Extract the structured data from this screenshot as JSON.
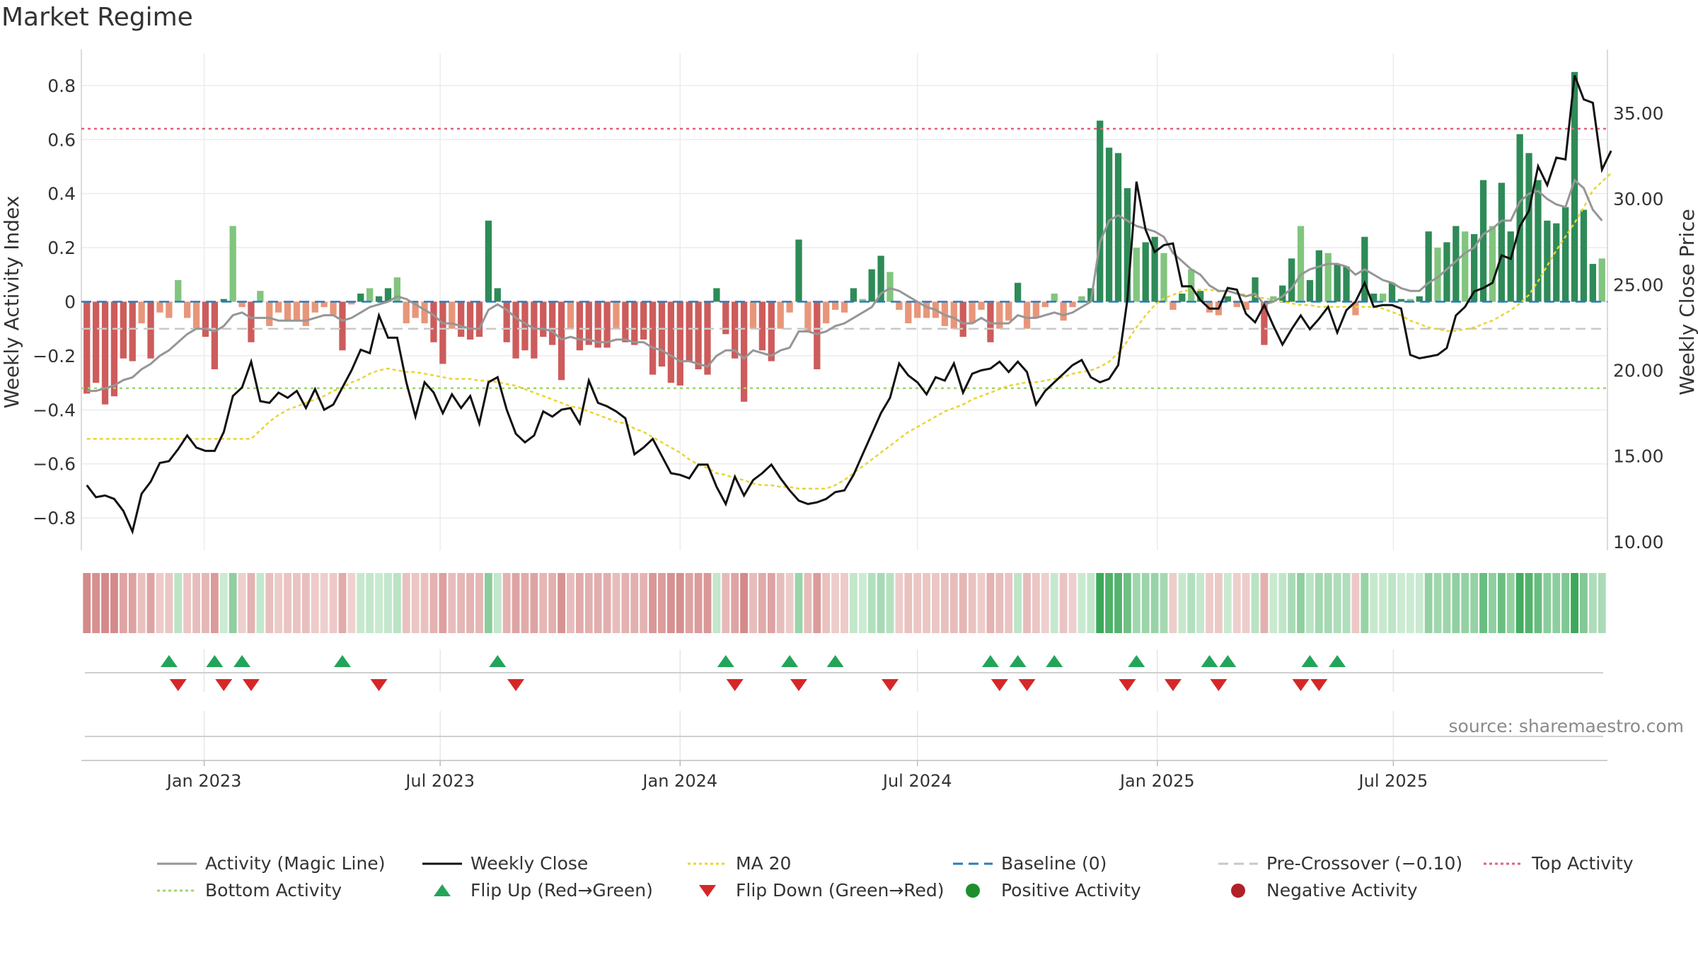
{
  "title": "Market Regime",
  "source": "source: sharemaestro.com",
  "chart_data": {
    "type": "bar",
    "frequency": "weekly",
    "start_date": "2022-10-03",
    "left_axis": {
      "label": "Weekly Activity Index",
      "ylim": [
        -0.92,
        0.92
      ],
      "ticks": [
        -0.8,
        -0.6,
        -0.4,
        -0.2,
        0,
        0.2,
        0.4,
        0.6,
        0.8
      ]
    },
    "right_axis": {
      "label": "Weekly Close Price",
      "ylim": [
        9.5,
        38.5
      ],
      "ticks": [
        10,
        15,
        20,
        25,
        30,
        35
      ]
    },
    "x_ticks": [
      "Jan 2023",
      "Jul 2023",
      "Jan 2024",
      "Jul 2024",
      "Jan 2025",
      "Jul 2025"
    ],
    "x_tick_dates": [
      "2023-01-01",
      "2023-07-01",
      "2024-01-01",
      "2024-07-01",
      "2025-01-01",
      "2025-07-01"
    ],
    "grid": true,
    "legend_position": "bottom",
    "reference_lines": {
      "baseline": 0,
      "pre_crossover": -0.1,
      "top_activity": 0.64,
      "bottom_activity": -0.32
    },
    "activity": [
      -0.34,
      -0.3,
      -0.38,
      -0.35,
      -0.21,
      -0.22,
      -0.08,
      -0.21,
      -0.04,
      -0.06,
      0.08,
      -0.06,
      -0.1,
      -0.13,
      -0.25,
      0.01,
      0.28,
      -0.02,
      -0.15,
      0.04,
      -0.09,
      -0.04,
      -0.07,
      -0.07,
      -0.09,
      -0.04,
      -0.02,
      -0.05,
      -0.18,
      -0.01,
      0.03,
      0.05,
      0.02,
      0.05,
      0.09,
      -0.08,
      -0.06,
      -0.08,
      -0.15,
      -0.23,
      -0.1,
      -0.13,
      -0.14,
      -0.13,
      0.3,
      0.05,
      -0.15,
      -0.21,
      -0.18,
      -0.21,
      -0.13,
      -0.16,
      -0.29,
      -0.1,
      -0.18,
      -0.16,
      -0.17,
      -0.17,
      -0.1,
      -0.15,
      -0.16,
      -0.14,
      -0.27,
      -0.24,
      -0.3,
      -0.31,
      -0.22,
      -0.25,
      -0.27,
      0.05,
      -0.12,
      -0.21,
      -0.37,
      -0.1,
      -0.18,
      -0.22,
      -0.1,
      -0.04,
      0.23,
      -0.11,
      -0.25,
      -0.08,
      -0.03,
      -0.04,
      0.05,
      0.01,
      0.12,
      0.17,
      0.11,
      -0.03,
      -0.08,
      -0.06,
      -0.06,
      -0.06,
      -0.09,
      -0.1,
      -0.13,
      -0.08,
      -0.03,
      -0.15,
      -0.1,
      -0.07,
      0.07,
      -0.1,
      -0.06,
      -0.02,
      0.03,
      -0.07,
      -0.02,
      0.02,
      0.05,
      0.67,
      0.57,
      0.55,
      0.42,
      0.2,
      0.22,
      0.24,
      0.18,
      -0.03,
      0.03,
      0.12,
      0.04,
      -0.04,
      -0.05,
      0.02,
      -0.02,
      -0.03,
      0.09,
      -0.16,
      0.02,
      0.06,
      0.16,
      0.28,
      0.08,
      0.19,
      0.18,
      0.14,
      0.13,
      -0.05,
      0.24,
      0.03,
      0.03,
      0.07,
      0.01,
      0.01,
      0.02,
      0.26,
      0.2,
      0.22,
      0.28,
      0.26,
      0.25,
      0.45,
      0.28,
      0.44,
      0.26,
      0.62,
      0.55,
      0.45,
      0.3,
      0.29,
      0.35,
      0.85,
      0.34,
      0.14,
      0.16
    ],
    "magic_line": [
      -0.33,
      -0.33,
      -0.32,
      -0.31,
      -0.29,
      -0.28,
      -0.25,
      -0.23,
      -0.2,
      -0.18,
      -0.15,
      -0.12,
      -0.1,
      -0.1,
      -0.11,
      -0.09,
      -0.05,
      -0.04,
      -0.06,
      -0.06,
      -0.06,
      -0.07,
      -0.07,
      -0.07,
      -0.07,
      -0.06,
      -0.05,
      -0.05,
      -0.07,
      -0.06,
      -0.04,
      -0.02,
      -0.01,
      0.0,
      0.02,
      0.01,
      -0.01,
      -0.03,
      -0.05,
      -0.08,
      -0.08,
      -0.09,
      -0.1,
      -0.1,
      -0.03,
      -0.01,
      -0.03,
      -0.06,
      -0.08,
      -0.1,
      -0.1,
      -0.11,
      -0.14,
      -0.13,
      -0.14,
      -0.14,
      -0.15,
      -0.15,
      -0.14,
      -0.14,
      -0.15,
      -0.15,
      -0.17,
      -0.18,
      -0.2,
      -0.22,
      -0.22,
      -0.23,
      -0.24,
      -0.2,
      -0.18,
      -0.18,
      -0.21,
      -0.18,
      -0.19,
      -0.2,
      -0.18,
      -0.17,
      -0.11,
      -0.11,
      -0.12,
      -0.11,
      -0.09,
      -0.08,
      -0.06,
      -0.04,
      -0.02,
      0.03,
      0.05,
      0.04,
      0.02,
      0.0,
      -0.02,
      -0.03,
      -0.05,
      -0.06,
      -0.08,
      -0.08,
      -0.06,
      -0.08,
      -0.08,
      -0.08,
      -0.05,
      -0.06,
      -0.06,
      -0.05,
      -0.04,
      -0.05,
      -0.04,
      -0.02,
      0.0,
      0.22,
      0.3,
      0.32,
      0.3,
      0.28,
      0.27,
      0.26,
      0.24,
      0.18,
      0.15,
      0.12,
      0.1,
      0.06,
      0.04,
      0.04,
      0.03,
      0.02,
      0.03,
      -0.01,
      0.0,
      0.02,
      0.05,
      0.1,
      0.12,
      0.13,
      0.14,
      0.14,
      0.13,
      0.1,
      0.12,
      0.1,
      0.08,
      0.07,
      0.05,
      0.04,
      0.04,
      0.07,
      0.09,
      0.12,
      0.15,
      0.18,
      0.2,
      0.25,
      0.27,
      0.3,
      0.3,
      0.37,
      0.4,
      0.41,
      0.38,
      0.36,
      0.35,
      0.45,
      0.42,
      0.34,
      0.3
    ],
    "weekly_close": [
      13.3,
      12.6,
      12.7,
      12.5,
      11.8,
      10.6,
      12.8,
      13.5,
      14.6,
      14.7,
      15.4,
      16.2,
      15.5,
      15.3,
      15.3,
      16.4,
      18.5,
      19.0,
      20.5,
      18.2,
      18.1,
      18.7,
      18.4,
      18.8,
      17.8,
      18.9,
      17.7,
      18.0,
      19.0,
      20.0,
      21.2,
      21.0,
      23.2,
      21.9,
      21.9,
      19.3,
      17.3,
      19.3,
      18.7,
      17.5,
      18.6,
      17.8,
      18.5,
      16.9,
      19.3,
      19.6,
      17.7,
      16.3,
      15.8,
      16.2,
      17.6,
      17.3,
      17.7,
      17.8,
      16.9,
      19.4,
      18.1,
      17.9,
      17.6,
      17.2,
      15.1,
      15.5,
      16.0,
      15.0,
      14.0,
      13.9,
      13.7,
      14.5,
      14.5,
      13.2,
      12.2,
      13.8,
      12.7,
      13.6,
      14.0,
      14.5,
      13.7,
      13.0,
      12.4,
      12.2,
      12.3,
      12.5,
      12.9,
      13.0,
      13.9,
      15.1,
      16.3,
      17.5,
      18.4,
      20.4,
      19.7,
      19.3,
      18.6,
      19.6,
      19.4,
      20.4,
      18.7,
      19.8,
      20.0,
      20.1,
      20.5,
      19.9,
      20.5,
      19.9,
      18.0,
      18.8,
      19.3,
      19.8,
      20.3,
      20.6,
      19.6,
      19.3,
      19.5,
      20.3,
      24.1,
      31.0,
      28.2,
      26.9,
      27.3,
      27.4,
      24.9,
      24.9,
      24.1,
      23.6,
      23.6,
      24.8,
      24.7,
      23.3,
      22.8,
      23.8,
      22.6,
      21.5,
      22.4,
      23.2,
      22.4,
      23.0,
      23.7,
      22.2,
      23.5,
      24.0,
      25.1,
      23.7,
      23.8,
      23.8,
      23.6,
      20.9,
      20.7,
      20.8,
      20.9,
      21.3,
      23.2,
      23.7,
      24.6,
      24.8,
      25.1,
      26.7,
      26.5,
      28.4,
      29.3,
      31.9,
      30.8,
      32.4,
      32.3,
      37.2,
      35.8,
      35.6,
      31.7,
      32.8
    ],
    "ma20": [
      16.0,
      16.0,
      16.0,
      16.0,
      16.0,
      16.0,
      16.0,
      16.0,
      16.0,
      16.0,
      16.0,
      16.0,
      16.0,
      16.0,
      16.0,
      16.0,
      16.0,
      16.0,
      16.0,
      16.5,
      17.0,
      17.4,
      17.7,
      17.9,
      18.1,
      18.3,
      18.5,
      18.8,
      19.0,
      19.3,
      19.5,
      19.8,
      20.0,
      20.1,
      20.0,
      19.9,
      19.9,
      19.8,
      19.7,
      19.6,
      19.5,
      19.5,
      19.5,
      19.4,
      19.4,
      19.3,
      19.2,
      19.1,
      18.9,
      18.7,
      18.5,
      18.3,
      18.1,
      17.9,
      17.8,
      17.6,
      17.4,
      17.2,
      17.0,
      16.9,
      16.6,
      16.4,
      16.1,
      15.8,
      15.5,
      15.2,
      14.8,
      14.5,
      14.3,
      14.0,
      13.9,
      13.7,
      13.6,
      13.4,
      13.3,
      13.3,
      13.2,
      13.2,
      13.1,
      13.1,
      13.1,
      13.1,
      13.3,
      13.6,
      14.0,
      14.4,
      14.8,
      15.2,
      15.6,
      16.0,
      16.4,
      16.7,
      17.0,
      17.3,
      17.6,
      17.8,
      18.0,
      18.3,
      18.5,
      18.7,
      18.9,
      19.1,
      19.2,
      19.3,
      19.3,
      19.4,
      19.5,
      19.6,
      19.8,
      19.9,
      20.0,
      20.2,
      20.5,
      21.0,
      21.7,
      22.5,
      23.2,
      23.8,
      24.2,
      24.4,
      24.6,
      24.7,
      24.7,
      24.7,
      24.6,
      24.6,
      24.5,
      24.4,
      24.3,
      24.2,
      24.1,
      24.0,
      23.9,
      23.8,
      23.8,
      23.7,
      23.7,
      23.7,
      23.7,
      23.7,
      23.7,
      23.7,
      23.6,
      23.4,
      23.2,
      22.9,
      22.7,
      22.5,
      22.4,
      22.3,
      22.3,
      22.4,
      22.5,
      22.7,
      22.9,
      23.2,
      23.5,
      23.9,
      24.4,
      25.2,
      26.1,
      27.0,
      27.8,
      28.6,
      29.5,
      30.5,
      31.0,
      31.5
    ],
    "flip_up_dates": [
      "2022-12-05",
      "2023-01-09",
      "2023-01-30",
      "2023-04-17",
      "2023-08-14",
      "2024-02-05",
      "2024-03-25",
      "2024-04-29",
      "2024-08-26",
      "2024-09-16",
      "2024-10-14",
      "2024-12-16",
      "2025-02-10",
      "2025-02-24",
      "2025-04-28",
      "2025-05-19"
    ],
    "flip_down_dates": [
      "2022-12-12",
      "2023-01-16",
      "2023-02-06",
      "2023-05-15",
      "2023-08-28",
      "2024-02-12",
      "2024-04-01",
      "2024-06-10",
      "2024-09-02",
      "2024-09-23",
      "2024-12-09",
      "2025-01-13",
      "2025-02-17",
      "2025-04-21",
      "2025-05-05"
    ],
    "legend": [
      {
        "label": "Activity (Magic Line)",
        "symbol": "line",
        "color": "#969696"
      },
      {
        "label": "Weekly Close",
        "symbol": "line",
        "color": "#111111"
      },
      {
        "label": "MA 20",
        "symbol": "dotted-line",
        "color": "#e8d534"
      },
      {
        "label": "Baseline (0)",
        "symbol": "dashed-line",
        "color": "#2b7bb9"
      },
      {
        "label": "Pre-Crossover (−0.10)",
        "symbol": "dashed-line",
        "color": "#c8c8c8"
      },
      {
        "label": "Top Activity",
        "symbol": "dotted-line",
        "color": "#e0607a"
      },
      {
        "label": "Bottom Activity",
        "symbol": "dotted-line",
        "color": "#9ed669"
      },
      {
        "label": "Flip Up (Red→Green)",
        "symbol": "triangle-up",
        "color": "#22a559"
      },
      {
        "label": "Flip Down (Green→Red)",
        "symbol": "triangle-down",
        "color": "#d62728"
      },
      {
        "label": "Positive Activity",
        "symbol": "circle",
        "color": "#1f8f2d"
      },
      {
        "label": "Negative Activity",
        "symbol": "circle",
        "color": "#b22028"
      }
    ],
    "colors": {
      "pos_strong": "#2e8b57",
      "pos_light": "#82c57e",
      "neg_strong": "#cd5c5c",
      "neg_light": "#e8967a"
    }
  }
}
